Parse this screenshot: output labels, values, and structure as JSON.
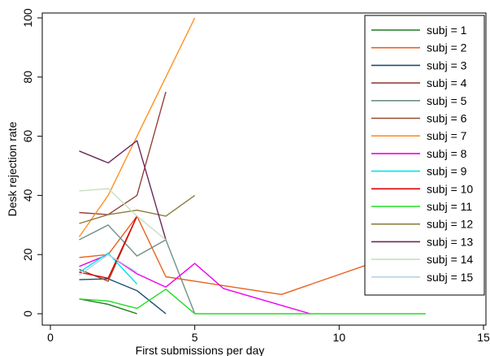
{
  "chart_data": {
    "type": "line",
    "xlabel": "First submissions per day",
    "ylabel": "Desk rejection rate",
    "xlim": [
      0,
      15
    ],
    "ylim": [
      0,
      100
    ],
    "xticks": [
      0,
      5,
      10,
      15
    ],
    "yticks": [
      0,
      20,
      40,
      60,
      80,
      100
    ],
    "grid": false,
    "legend_position": "right",
    "series": [
      {
        "name": "subj = 1",
        "color": "#1f7a1f",
        "x": [
          1,
          2,
          3
        ],
        "y": [
          5,
          3.2,
          0
        ]
      },
      {
        "name": "subj = 2",
        "color": "#e8601c",
        "x": [
          1,
          2,
          3,
          4,
          8,
          12
        ],
        "y": [
          19,
          20,
          33,
          12.5,
          6.5,
          20
        ]
      },
      {
        "name": "subj = 3",
        "color": "#1b4f72",
        "x": [
          1,
          2,
          3,
          4
        ],
        "y": [
          11.5,
          11.8,
          7.8,
          0
        ]
      },
      {
        "name": "subj = 4",
        "color": "#96413b",
        "x": [
          1,
          2,
          3,
          4
        ],
        "y": [
          34.2,
          33.5,
          40,
          75
        ]
      },
      {
        "name": "subj = 5",
        "color": "#6f8f8a",
        "x": [
          1,
          2,
          3,
          4,
          5
        ],
        "y": [
          25,
          30,
          19.5,
          25,
          0
        ]
      },
      {
        "name": "subj = 6",
        "color": "#9b4a2e",
        "x": [
          1,
          2,
          3
        ],
        "y": [
          15,
          11,
          33
        ]
      },
      {
        "name": "subj = 7",
        "color": "#ff9020",
        "x": [
          1,
          2,
          3,
          4,
          5
        ],
        "y": [
          26,
          40,
          60,
          80,
          100
        ]
      },
      {
        "name": "subj = 8",
        "color": "#ee00ee",
        "x": [
          1,
          2,
          3,
          4,
          5,
          6,
          9
        ],
        "y": [
          16,
          20,
          13.5,
          9,
          17,
          8.5,
          0
        ]
      },
      {
        "name": "subj = 9",
        "color": "#00e5ee",
        "x": [
          1,
          2,
          3
        ],
        "y": [
          14,
          20.5,
          10
        ]
      },
      {
        "name": "subj = 10",
        "color": "#e00000",
        "x": [
          1,
          2,
          3
        ],
        "y": [
          14,
          12,
          33
        ]
      },
      {
        "name": "subj = 11",
        "color": "#22dd22",
        "x": [
          1,
          2,
          3,
          4,
          5,
          13
        ],
        "y": [
          5,
          4.3,
          1.8,
          8.3,
          0,
          0
        ]
      },
      {
        "name": "subj = 12",
        "color": "#8c7d3e",
        "x": [
          1,
          2,
          3,
          4,
          5
        ],
        "y": [
          30.5,
          33.5,
          35,
          33,
          40
        ]
      },
      {
        "name": "subj = 13",
        "color": "#6b2a5a",
        "x": [
          1,
          2,
          3,
          4
        ],
        "y": [
          55,
          51,
          58.5,
          25
        ]
      },
      {
        "name": "subj = 14",
        "color": "#c7dfc0",
        "x": [
          1,
          2,
          3,
          4
        ],
        "y": [
          41.5,
          42.3,
          33,
          25
        ]
      },
      {
        "name": "subj = 15",
        "color": "#b8d4e4",
        "x": [
          1,
          2,
          3
        ],
        "y": [
          13,
          20,
          14
        ]
      }
    ]
  }
}
